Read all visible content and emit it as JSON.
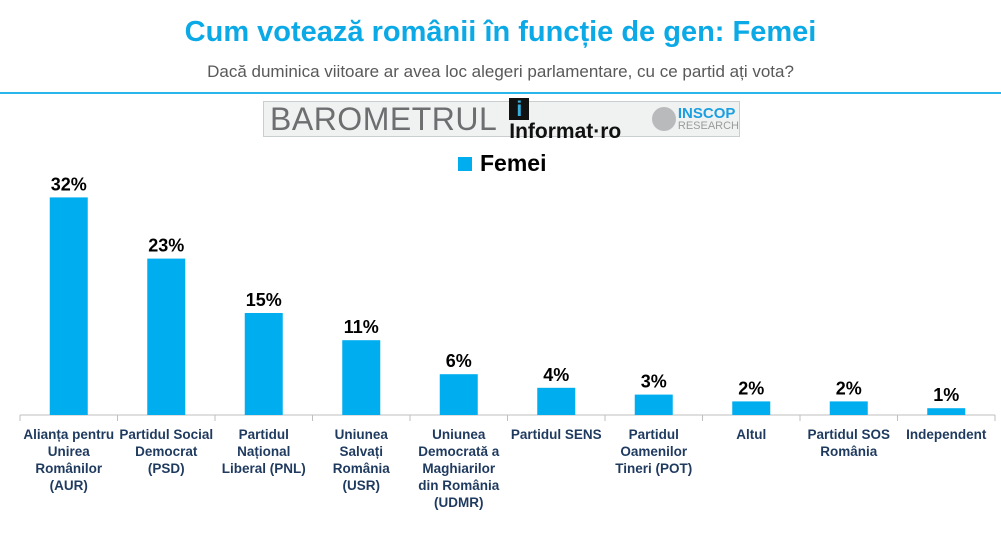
{
  "header": {
    "title": "Cum votează românii în funcție de gen: Femei",
    "subtitle": "Dacă duminica viitoare ar avea loc alegeri parlamentare, cu ce partid ați vota?"
  },
  "logo": {
    "barometru": "BAROMETRUL",
    "informat": "Informat·ro",
    "inscop": "INSCOP",
    "research": "RESEARCH"
  },
  "chart_data": {
    "type": "bar",
    "categories": [
      "Alianța pentru Unirea Românilor (AUR)",
      "Partidul Social Democrat (PSD)",
      "Partidul Național Liberal (PNL)",
      "Uniunea Salvați România (USR)",
      "Uniunea Democrată a Maghiarilor din România (UDMR)",
      "Partidul SENS",
      "Partidul Oamenilor Tineri (POT)",
      "Altul",
      "Partidul SOS România",
      "Independent"
    ],
    "series": [
      {
        "name": "Femei",
        "values": [
          32,
          23,
          15,
          11,
          6,
          4,
          3,
          2,
          2,
          1
        ],
        "labels": [
          "32%",
          "23%",
          "15%",
          "11%",
          "6%",
          "4%",
          "3%",
          "2%",
          "2%",
          "1%"
        ]
      }
    ],
    "ylim": [
      0,
      35
    ],
    "grid": false,
    "legend": "top-center",
    "color": "#00aeef"
  }
}
